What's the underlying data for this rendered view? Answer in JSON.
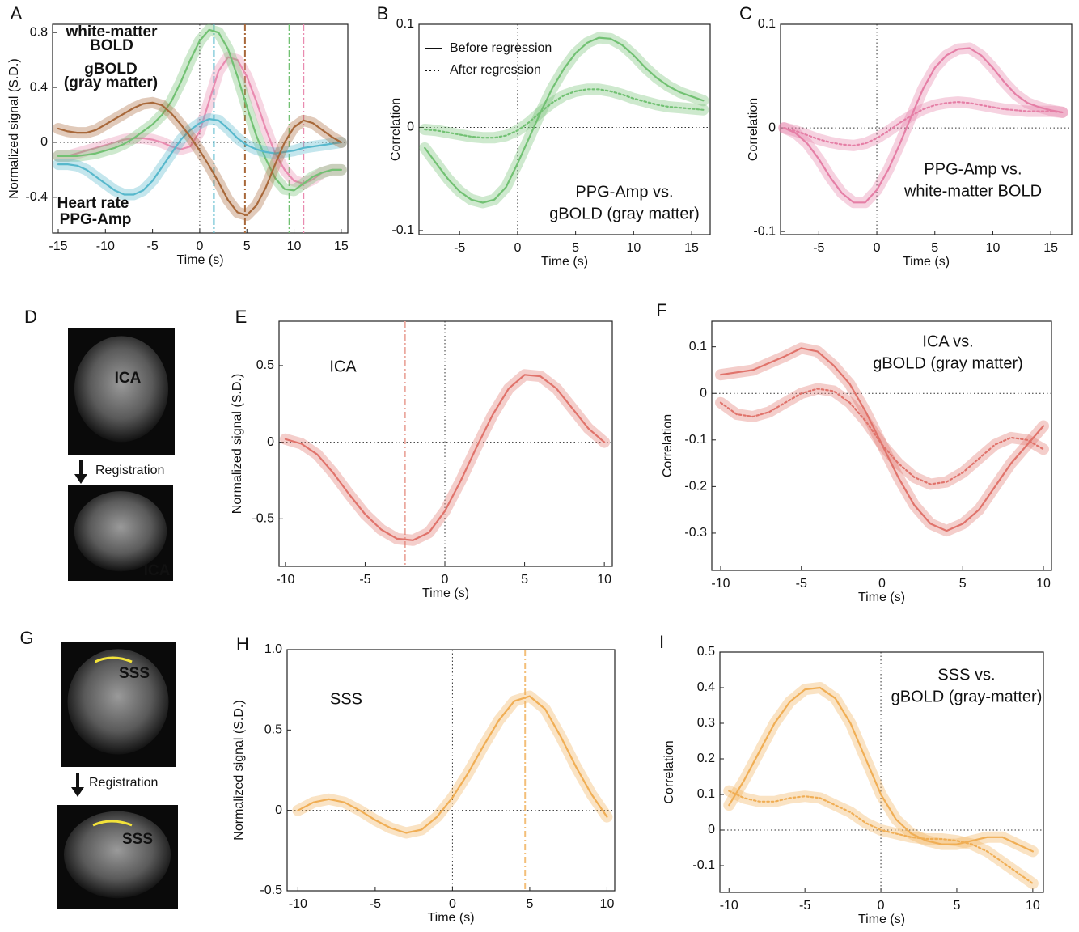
{
  "chart_data": [
    {
      "type": "line",
      "panel": "A",
      "xlabel": "Time (s)",
      "ylabel": "Normalized signal (S.D.)",
      "xlim": [
        -15.6,
        15.7
      ],
      "ylim": [
        -0.66,
        0.86
      ],
      "xticks": [
        -15,
        -10,
        -5,
        0,
        5,
        10,
        15
      ],
      "yticks": [
        -0.4,
        0,
        0.4,
        0.8
      ],
      "zero_lines": true,
      "x": [
        -15,
        -14,
        -13,
        -12,
        -11,
        -10,
        -9,
        -8,
        -7,
        -6,
        -5,
        -4,
        -3,
        -2,
        -1,
        0,
        1,
        2,
        3,
        4,
        5,
        6,
        7,
        8,
        9,
        10,
        11,
        12,
        13,
        14,
        15
      ],
      "series": [
        {
          "color": "#e98bb0",
          "style": "solid",
          "values": [
            -0.1,
            -0.1,
            -0.08,
            -0.06,
            -0.04,
            -0.02,
            0,
            0.02,
            0.03,
            0.03,
            0.02,
            0,
            -0.03,
            -0.05,
            -0.03,
            0.08,
            0.3,
            0.52,
            0.62,
            0.6,
            0.48,
            0.3,
            0.1,
            -0.08,
            -0.2,
            -0.28,
            -0.3,
            -0.27,
            -0.22,
            -0.2,
            -0.2
          ]
        },
        {
          "color": "#72c173",
          "style": "solid",
          "values": [
            -0.1,
            -0.1,
            -0.1,
            -0.09,
            -0.08,
            -0.06,
            -0.04,
            -0.01,
            0.03,
            0.08,
            0.13,
            0.2,
            0.3,
            0.44,
            0.6,
            0.74,
            0.82,
            0.8,
            0.68,
            0.48,
            0.26,
            0.05,
            -0.12,
            -0.26,
            -0.34,
            -0.35,
            -0.3,
            -0.25,
            -0.22,
            -0.2,
            -0.2
          ]
        },
        {
          "color": "#57b8cc",
          "style": "solid",
          "values": [
            -0.16,
            -0.16,
            -0.17,
            -0.2,
            -0.25,
            -0.3,
            -0.35,
            -0.38,
            -0.38,
            -0.35,
            -0.28,
            -0.18,
            -0.08,
            0.02,
            0.09,
            0.14,
            0.17,
            0.16,
            0.1,
            0.03,
            -0.02,
            -0.05,
            -0.07,
            -0.08,
            -0.07,
            -0.06,
            -0.04,
            -0.03,
            -0.02,
            -0.01,
            0
          ]
        },
        {
          "color": "#a8683a",
          "style": "solid",
          "values": [
            0.1,
            0.08,
            0.07,
            0.07,
            0.09,
            0.13,
            0.17,
            0.21,
            0.25,
            0.28,
            0.29,
            0.27,
            0.21,
            0.13,
            0.04,
            -0.06,
            -0.17,
            -0.29,
            -0.42,
            -0.51,
            -0.53,
            -0.46,
            -0.33,
            -0.16,
            0,
            0.11,
            0.16,
            0.14,
            0.09,
            0.04,
            0
          ]
        }
      ],
      "vlines": [
        {
          "x": 1.5,
          "color": "#57b8cc"
        },
        {
          "x": 4.8,
          "color": "#a8683a"
        },
        {
          "x": 9.5,
          "color": "#72c173"
        },
        {
          "x": 11,
          "color": "#e98bb0"
        }
      ],
      "annotations": [
        {
          "lines": [
            "white-matter",
            "BOLD"
          ],
          "color": "#ee9dbd"
        },
        {
          "lines": [
            "gBOLD",
            "(gray matter)"
          ],
          "color": "#7fc97f"
        },
        {
          "lines": [
            "Heart rate"
          ],
          "color": "#6cc3d4"
        },
        {
          "lines": [
            "PPG-Amp"
          ],
          "color": "#a8683a"
        }
      ]
    },
    {
      "type": "line",
      "panel": "B",
      "xlabel": "Time (s)",
      "ylabel": "Correlation",
      "xlim": [
        -8.5,
        16.6
      ],
      "ylim": [
        -0.104,
        0.1
      ],
      "xticks": [
        -5,
        0,
        5,
        10,
        15
      ],
      "yticks": [
        -0.1,
        0,
        0.1
      ],
      "zero_lines": true,
      "legend": true,
      "x": [
        -8,
        -7,
        -6,
        -5,
        -4,
        -3,
        -2,
        -1,
        0,
        1,
        2,
        3,
        4,
        5,
        6,
        7,
        8,
        9,
        10,
        11,
        12,
        13,
        14,
        15,
        16
      ],
      "series": [
        {
          "name": "Before regression",
          "color": "#72c173",
          "style": "solid",
          "values": [
            -0.02,
            -0.035,
            -0.05,
            -0.062,
            -0.07,
            -0.073,
            -0.07,
            -0.058,
            -0.035,
            -0.01,
            0.015,
            0.038,
            0.057,
            0.072,
            0.082,
            0.087,
            0.086,
            0.08,
            0.07,
            0.058,
            0.048,
            0.04,
            0.034,
            0.03,
            0.026
          ]
        },
        {
          "name": "After regression",
          "color": "#72c173",
          "style": "dotted",
          "values": [
            -0.002,
            -0.003,
            -0.005,
            -0.007,
            -0.009,
            -0.01,
            -0.01,
            -0.008,
            -0.003,
            0.005,
            0.015,
            0.024,
            0.031,
            0.035,
            0.037,
            0.037,
            0.035,
            0.032,
            0.028,
            0.025,
            0.022,
            0.02,
            0.019,
            0.018,
            0.017
          ]
        }
      ],
      "annotations": [
        {
          "lines": [
            "PPG-Amp vs.",
            "gBOLD (gray matter)"
          ],
          "color": "#222222"
        }
      ]
    },
    {
      "type": "line",
      "panel": "C",
      "xlabel": "Time (s)",
      "ylabel": "Correlation",
      "xlim": [
        -8.3,
        16.8
      ],
      "ylim": [
        -0.103,
        0.1
      ],
      "xticks": [
        -5,
        0,
        5,
        10,
        15
      ],
      "yticks": [
        -0.1,
        0,
        0.1
      ],
      "zero_lines": true,
      "x": [
        -8,
        -7,
        -6,
        -5,
        -4,
        -3,
        -2,
        -1,
        0,
        1,
        2,
        3,
        4,
        5,
        6,
        7,
        8,
        9,
        10,
        11,
        12,
        13,
        14,
        15,
        16
      ],
      "series": [
        {
          "color": "#e57fa6",
          "style": "solid",
          "values": [
            0,
            -0.005,
            -0.015,
            -0.03,
            -0.048,
            -0.063,
            -0.072,
            -0.072,
            -0.06,
            -0.04,
            -0.015,
            0.012,
            0.038,
            0.058,
            0.07,
            0.076,
            0.077,
            0.07,
            0.058,
            0.044,
            0.032,
            0.024,
            0.02,
            0.017,
            0.015
          ]
        },
        {
          "color": "#e57fa6",
          "style": "dotted",
          "values": [
            0,
            -0.003,
            -0.007,
            -0.011,
            -0.014,
            -0.016,
            -0.017,
            -0.015,
            -0.01,
            -0.003,
            0.005,
            0.012,
            0.018,
            0.022,
            0.024,
            0.025,
            0.024,
            0.022,
            0.02,
            0.018,
            0.017,
            0.016,
            0.016,
            0.016,
            0.015
          ]
        }
      ],
      "annotations": [
        {
          "lines": [
            "PPG-Amp vs.",
            "white-matter BOLD"
          ],
          "color": "#222222"
        }
      ]
    },
    {
      "type": "image",
      "panel": "D",
      "labels": [
        "ICA",
        "Registration",
        "ICA"
      ]
    },
    {
      "type": "line",
      "panel": "E",
      "xlabel": "Time (s)",
      "ylabel": "Normalized signal (S.D.)",
      "xlim": [
        -10.4,
        10.5
      ],
      "ylim": [
        -0.81,
        0.79
      ],
      "xticks": [
        -10,
        -5,
        0,
        5,
        10
      ],
      "yticks": [
        -0.5,
        0,
        0.5
      ],
      "zero_lines": true,
      "x": [
        -10,
        -9,
        -8,
        -7,
        -6,
        -5,
        -4,
        -3,
        -2,
        -1,
        0,
        1,
        2,
        3,
        4,
        5,
        6,
        7,
        8,
        9,
        10
      ],
      "series": [
        {
          "color": "#e0736b",
          "style": "solid",
          "values": [
            0.02,
            -0.01,
            -0.08,
            -0.2,
            -0.34,
            -0.47,
            -0.57,
            -0.63,
            -0.64,
            -0.59,
            -0.45,
            -0.25,
            -0.03,
            0.18,
            0.35,
            0.44,
            0.43,
            0.35,
            0.22,
            0.09,
            0
          ]
        }
      ],
      "vlines": [
        {
          "x": -2.5,
          "color": "#eba89f"
        }
      ],
      "annotations": [
        {
          "lines": [
            "ICA"
          ],
          "color": "#e0736b"
        }
      ]
    },
    {
      "type": "line",
      "panel": "F",
      "xlabel": "Time (s)",
      "ylabel": "Correlation",
      "xlim": [
        -10.55,
        10.5
      ],
      "ylim": [
        -0.38,
        0.155
      ],
      "xticks": [
        -10,
        -5,
        0,
        5,
        10
      ],
      "yticks": [
        -0.3,
        -0.2,
        -0.1,
        0,
        0.1
      ],
      "zero_lines": true,
      "x": [
        -10,
        -9,
        -8,
        -7,
        -6,
        -5,
        -4,
        -3,
        -2,
        -1,
        0,
        1,
        2,
        3,
        4,
        5,
        6,
        7,
        8,
        9,
        10
      ],
      "series": [
        {
          "color": "#e0736b",
          "style": "solid",
          "values": [
            0.04,
            0.045,
            0.05,
            0.065,
            0.08,
            0.097,
            0.09,
            0.06,
            0.02,
            -0.04,
            -0.11,
            -0.18,
            -0.24,
            -0.28,
            -0.295,
            -0.28,
            -0.25,
            -0.2,
            -0.15,
            -0.11,
            -0.07
          ]
        },
        {
          "color": "#e0736b",
          "style": "dotted",
          "values": [
            -0.02,
            -0.045,
            -0.05,
            -0.04,
            -0.02,
            0,
            0.01,
            0.005,
            -0.02,
            -0.06,
            -0.11,
            -0.15,
            -0.18,
            -0.195,
            -0.19,
            -0.17,
            -0.14,
            -0.11,
            -0.095,
            -0.1,
            -0.12
          ]
        }
      ],
      "annotations": [
        {
          "lines": [
            "ICA vs.",
            "gBOLD (gray matter)"
          ],
          "color": "#222222"
        }
      ]
    },
    {
      "type": "image",
      "panel": "G",
      "labels": [
        "SSS",
        "Registration",
        "SSS"
      ]
    },
    {
      "type": "line",
      "panel": "H",
      "xlabel": "Time (s)",
      "ylabel": "Normalized signal (S.D.)",
      "xlim": [
        -10.7,
        10.5
      ],
      "ylim": [
        -0.5,
        1
      ],
      "xticks": [
        -10,
        -5,
        0,
        5,
        10
      ],
      "yticks": [
        -0.5,
        0,
        0.5,
        {
          "value": 1,
          "label": "1.0"
        }
      ],
      "zero_lines": true,
      "x": [
        -10,
        -9,
        -8,
        -7,
        -6,
        -5,
        -4,
        -3,
        -2,
        -1,
        0,
        1,
        2,
        3,
        4,
        5,
        6,
        7,
        8,
        9,
        10
      ],
      "series": [
        {
          "color": "#f0ae55",
          "style": "solid",
          "values": [
            0,
            0.05,
            0.07,
            0.05,
            0,
            -0.06,
            -0.11,
            -0.14,
            -0.12,
            -0.04,
            0.08,
            0.23,
            0.4,
            0.56,
            0.68,
            0.71,
            0.63,
            0.46,
            0.27,
            0.1,
            -0.04
          ]
        }
      ],
      "vlines": [
        {
          "x": 4.7,
          "color": "#f3bf7a"
        }
      ],
      "annotations": [
        {
          "lines": [
            "SSS"
          ],
          "color": "#f0ae55"
        }
      ]
    },
    {
      "type": "line",
      "panel": "I",
      "xlabel": "Time (s)",
      "ylabel": "Correlation",
      "xlim": [
        -10.6,
        10.7
      ],
      "ylim": [
        -0.175,
        0.5
      ],
      "xticks": [
        -10,
        -5,
        0,
        5,
        10
      ],
      "yticks": [
        -0.1,
        0,
        0.1,
        0.2,
        0.3,
        0.4,
        0.5
      ],
      "zero_lines": true,
      "x": [
        -10,
        -9,
        -8,
        -7,
        -6,
        -5,
        -4,
        -3,
        -2,
        -1,
        0,
        1,
        2,
        3,
        4,
        5,
        6,
        7,
        8,
        9,
        10
      ],
      "series": [
        {
          "color": "#f0ae55",
          "style": "solid",
          "values": [
            0.07,
            0.14,
            0.22,
            0.3,
            0.36,
            0.395,
            0.4,
            0.37,
            0.3,
            0.2,
            0.1,
            0.03,
            -0.01,
            -0.03,
            -0.04,
            -0.04,
            -0.03,
            -0.02,
            -0.02,
            -0.04,
            -0.06
          ]
        },
        {
          "color": "#f0ae55",
          "style": "dotted",
          "values": [
            0.11,
            0.09,
            0.08,
            0.08,
            0.09,
            0.095,
            0.09,
            0.07,
            0.05,
            0.02,
            0,
            -0.01,
            -0.02,
            -0.025,
            -0.025,
            -0.03,
            -0.04,
            -0.06,
            -0.09,
            -0.12,
            -0.15
          ]
        }
      ],
      "annotations": [
        {
          "lines": [
            "SSS vs.",
            "gBOLD (gray-matter)"
          ],
          "color": "#222222"
        }
      ]
    }
  ]
}
